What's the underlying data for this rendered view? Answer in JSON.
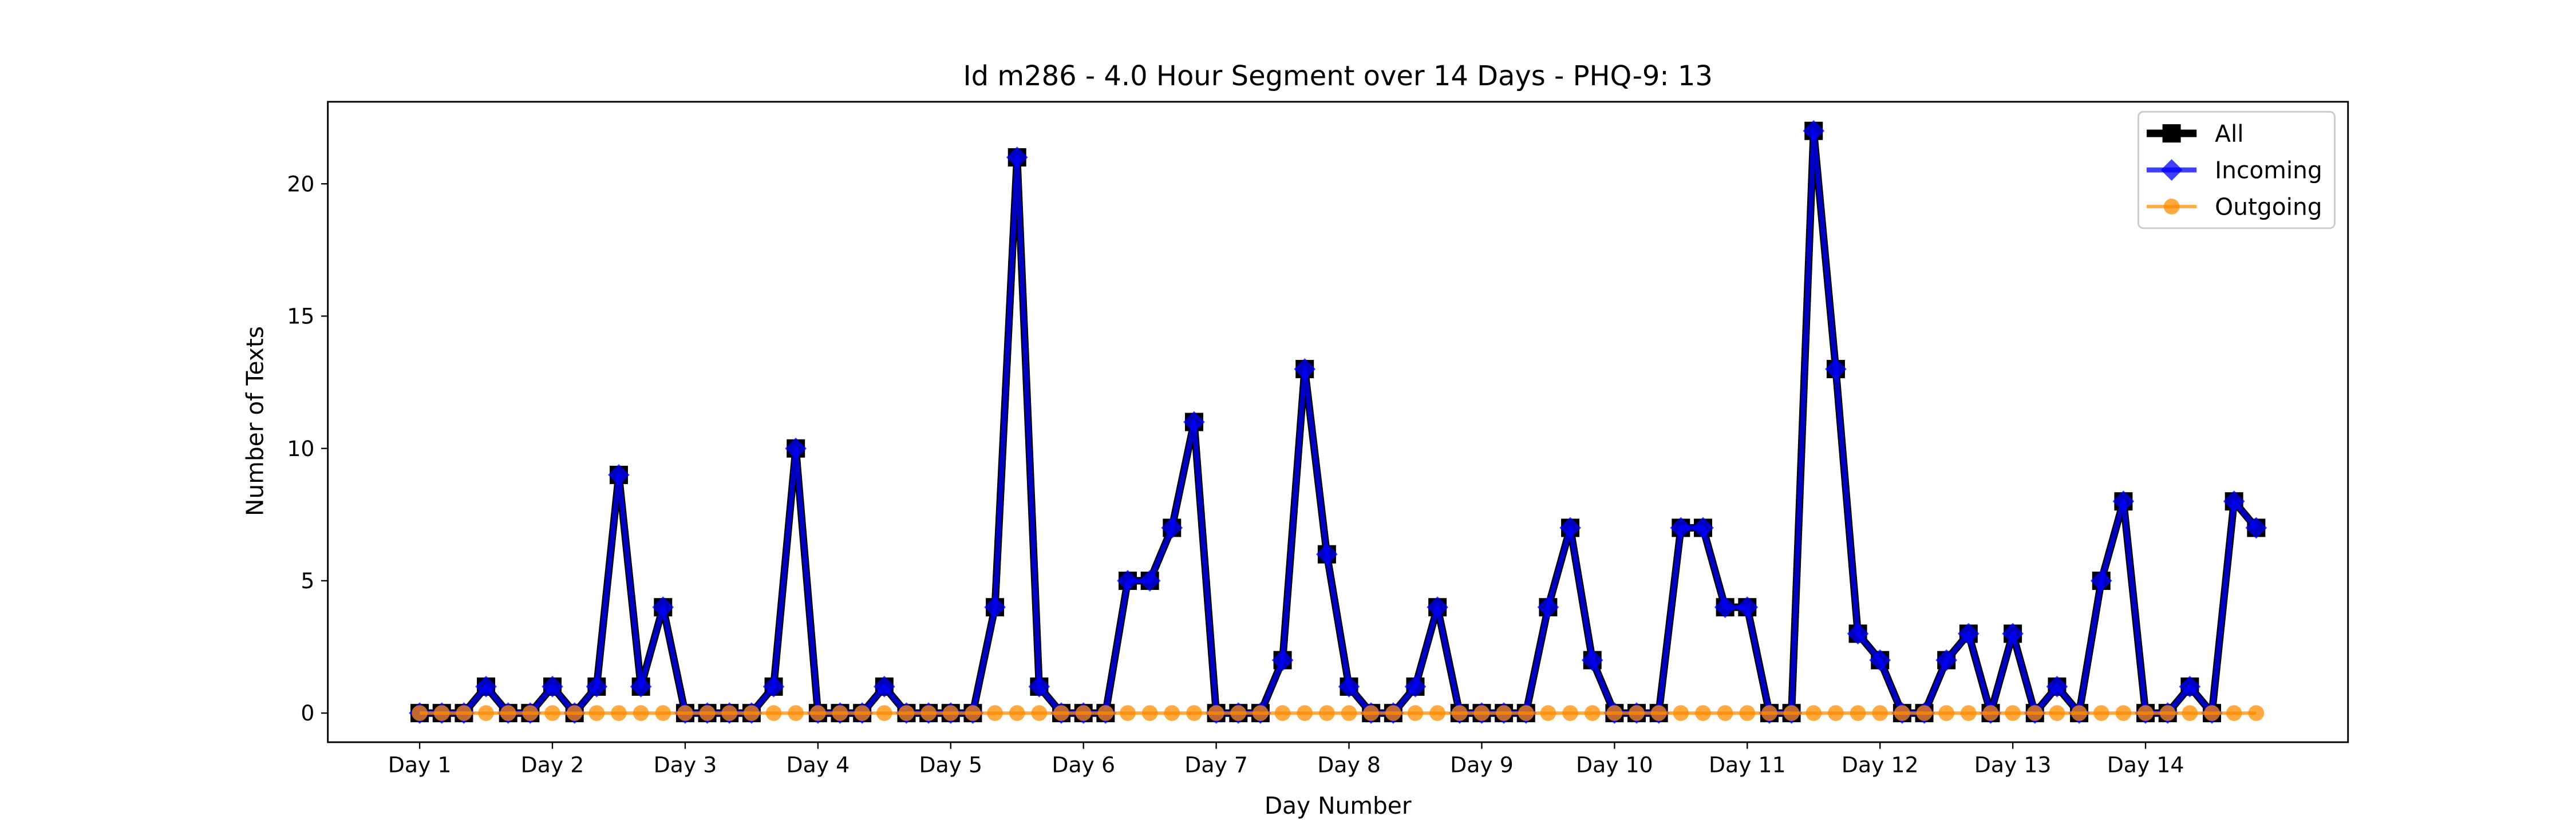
{
  "chart_data": {
    "type": "line",
    "title": "Id m286 - 4.0 Hour Segment over 14 Days - PHQ-9: 13",
    "xlabel": "Day Number",
    "ylabel": "Number of Texts",
    "x": [
      0,
      1,
      2,
      3,
      4,
      5,
      6,
      7,
      8,
      9,
      10,
      11,
      12,
      13,
      14,
      15,
      16,
      17,
      18,
      19,
      20,
      21,
      22,
      23,
      24,
      25,
      26,
      27,
      28,
      29,
      30,
      31,
      32,
      33,
      34,
      35,
      36,
      37,
      38,
      39,
      40,
      41,
      42,
      43,
      44,
      45,
      46,
      47,
      48,
      49,
      50,
      51,
      52,
      53,
      54,
      55,
      56,
      57,
      58,
      59,
      60,
      61,
      62,
      63,
      64,
      65,
      66,
      67,
      68,
      69,
      70,
      71,
      72,
      73,
      74,
      75,
      76,
      77,
      78,
      79,
      80,
      81,
      82,
      83
    ],
    "series": [
      {
        "name": "All",
        "color": "#000000",
        "marker": "square",
        "values": [
          0,
          0,
          0,
          1,
          0,
          0,
          1,
          0,
          1,
          9,
          1,
          4,
          0,
          0,
          0,
          0,
          1,
          10,
          0,
          0,
          0,
          1,
          0,
          0,
          0,
          0,
          4,
          21,
          1,
          0,
          0,
          0,
          5,
          5,
          7,
          11,
          0,
          0,
          0,
          2,
          13,
          6,
          1,
          0,
          0,
          1,
          4,
          0,
          0,
          0,
          0,
          4,
          7,
          2,
          0,
          0,
          0,
          7,
          7,
          4,
          4,
          0,
          0,
          22,
          13,
          3,
          2,
          0,
          0,
          2,
          3,
          0,
          3,
          0,
          1,
          0,
          5,
          8,
          0,
          0,
          1,
          0,
          8,
          7
        ]
      },
      {
        "name": "Incoming",
        "color": "#0000ff",
        "marker": "diamond",
        "values": [
          0,
          0,
          0,
          1,
          0,
          0,
          1,
          0,
          1,
          9,
          1,
          4,
          0,
          0,
          0,
          0,
          1,
          10,
          0,
          0,
          0,
          1,
          0,
          0,
          0,
          0,
          4,
          21,
          1,
          0,
          0,
          0,
          5,
          5,
          7,
          11,
          0,
          0,
          0,
          2,
          13,
          6,
          1,
          0,
          0,
          1,
          4,
          0,
          0,
          0,
          0,
          4,
          7,
          2,
          0,
          0,
          0,
          7,
          7,
          4,
          4,
          0,
          0,
          22,
          13,
          3,
          2,
          0,
          0,
          2,
          3,
          0,
          3,
          0,
          1,
          0,
          5,
          8,
          0,
          0,
          1,
          0,
          8,
          7
        ]
      },
      {
        "name": "Outgoing",
        "color": "#ff8c00",
        "marker": "circle",
        "values": [
          0,
          0,
          0,
          0,
          0,
          0,
          0,
          0,
          0,
          0,
          0,
          0,
          0,
          0,
          0,
          0,
          0,
          0,
          0,
          0,
          0,
          0,
          0,
          0,
          0,
          0,
          0,
          0,
          0,
          0,
          0,
          0,
          0,
          0,
          0,
          0,
          0,
          0,
          0,
          0,
          0,
          0,
          0,
          0,
          0,
          0,
          0,
          0,
          0,
          0,
          0,
          0,
          0,
          0,
          0,
          0,
          0,
          0,
          0,
          0,
          0,
          0,
          0,
          0,
          0,
          0,
          0,
          0,
          0,
          0,
          0,
          0,
          0,
          0,
          0,
          0,
          0,
          0,
          0,
          0,
          0,
          0,
          0,
          0
        ]
      }
    ],
    "xlim": [
      -4.15,
      87.15
    ],
    "xticks": [
      {
        "value": 0,
        "label": "Day 1"
      },
      {
        "value": 6,
        "label": "Day 2"
      },
      {
        "value": 12,
        "label": "Day 3"
      },
      {
        "value": 18,
        "label": "Day 4"
      },
      {
        "value": 24,
        "label": "Day 5"
      },
      {
        "value": 30,
        "label": "Day 6"
      },
      {
        "value": 36,
        "label": "Day 7"
      },
      {
        "value": 42,
        "label": "Day 8"
      },
      {
        "value": 48,
        "label": "Day 9"
      },
      {
        "value": 54,
        "label": "Day 10"
      },
      {
        "value": 60,
        "label": "Day 11"
      },
      {
        "value": 66,
        "label": "Day 12"
      },
      {
        "value": 72,
        "label": "Day 13"
      },
      {
        "value": 78,
        "label": "Day 14"
      }
    ],
    "ylim": [
      -1.1,
      23.1
    ],
    "yticks": [
      0,
      5,
      10,
      15,
      20
    ],
    "grid": false,
    "legend": "upper right"
  }
}
